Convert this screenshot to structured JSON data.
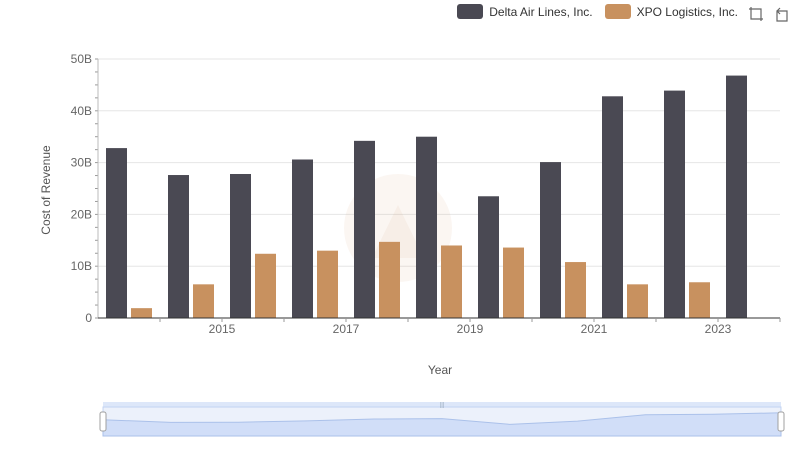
{
  "chart_data": {
    "type": "bar",
    "categories": [
      "2014",
      "2015",
      "2016",
      "2017",
      "2018",
      "2019",
      "2020",
      "2021",
      "2022",
      "2023",
      "2024"
    ],
    "x_tick_labels": [
      "2015",
      "2017",
      "2019",
      "2021",
      "2023"
    ],
    "series": [
      {
        "name": "Delta Air Lines, Inc.",
        "color": "#4a4953",
        "values": [
          32.8,
          27.6,
          27.8,
          30.6,
          34.2,
          35.0,
          23.5,
          30.1,
          42.8,
          43.9,
          46.8
        ]
      },
      {
        "name": "XPO Logistics, Inc.",
        "color": "#c8915f",
        "values": [
          1.9,
          6.5,
          12.4,
          13.0,
          14.7,
          14.0,
          13.6,
          10.8,
          6.5,
          6.9,
          null
        ]
      }
    ],
    "xlabel": "Year",
    "ylabel": "Cost of Revenue",
    "ylim": [
      0,
      50
    ],
    "y_ticks": [
      "0",
      "10B",
      "20B",
      "30B",
      "40B",
      "50B"
    ],
    "grid": true,
    "legend_position": "top-right"
  },
  "toolbox": {
    "zoom_icon": "zoom-icon",
    "restore_icon": "restore-icon"
  },
  "colors": {
    "grid": "#e6e6e6",
    "axis": "#333333",
    "slider_fill": "#dbe6fb",
    "slider_border": "#c4d4f2"
  }
}
